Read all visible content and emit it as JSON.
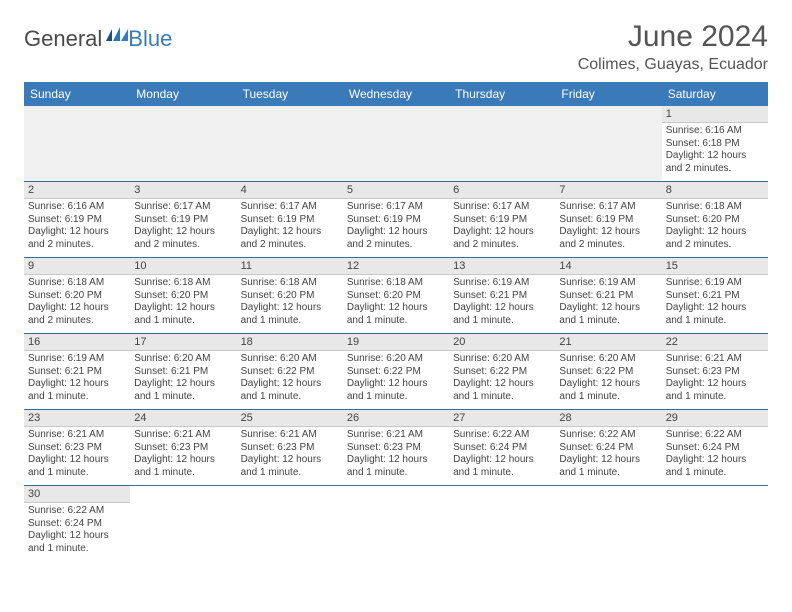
{
  "header": {
    "logo_main": "General",
    "logo_sub": "Blue",
    "month_title": "June 2024",
    "location": "Colimes, Guayas, Ecuador"
  },
  "colors": {
    "header_bg": "#3a7ab8",
    "header_text": "#ffffff",
    "day_bg": "#e8e8e8",
    "border": "#3a6a9a",
    "text": "#444444",
    "logo_blue": "#3a7ab8"
  },
  "day_headers": [
    "Sunday",
    "Monday",
    "Tuesday",
    "Wednesday",
    "Thursday",
    "Friday",
    "Saturday"
  ],
  "weeks": [
    [
      {
        "blank": true
      },
      {
        "blank": true
      },
      {
        "blank": true
      },
      {
        "blank": true
      },
      {
        "blank": true
      },
      {
        "blank": true
      },
      {
        "num": "1",
        "sunrise": "Sunrise: 6:16 AM",
        "sunset": "Sunset: 6:18 PM",
        "daylight": "Daylight: 12 hours and 2 minutes."
      }
    ],
    [
      {
        "num": "2",
        "sunrise": "Sunrise: 6:16 AM",
        "sunset": "Sunset: 6:19 PM",
        "daylight": "Daylight: 12 hours and 2 minutes."
      },
      {
        "num": "3",
        "sunrise": "Sunrise: 6:17 AM",
        "sunset": "Sunset: 6:19 PM",
        "daylight": "Daylight: 12 hours and 2 minutes."
      },
      {
        "num": "4",
        "sunrise": "Sunrise: 6:17 AM",
        "sunset": "Sunset: 6:19 PM",
        "daylight": "Daylight: 12 hours and 2 minutes."
      },
      {
        "num": "5",
        "sunrise": "Sunrise: 6:17 AM",
        "sunset": "Sunset: 6:19 PM",
        "daylight": "Daylight: 12 hours and 2 minutes."
      },
      {
        "num": "6",
        "sunrise": "Sunrise: 6:17 AM",
        "sunset": "Sunset: 6:19 PM",
        "daylight": "Daylight: 12 hours and 2 minutes."
      },
      {
        "num": "7",
        "sunrise": "Sunrise: 6:17 AM",
        "sunset": "Sunset: 6:19 PM",
        "daylight": "Daylight: 12 hours and 2 minutes."
      },
      {
        "num": "8",
        "sunrise": "Sunrise: 6:18 AM",
        "sunset": "Sunset: 6:20 PM",
        "daylight": "Daylight: 12 hours and 2 minutes."
      }
    ],
    [
      {
        "num": "9",
        "sunrise": "Sunrise: 6:18 AM",
        "sunset": "Sunset: 6:20 PM",
        "daylight": "Daylight: 12 hours and 2 minutes."
      },
      {
        "num": "10",
        "sunrise": "Sunrise: 6:18 AM",
        "sunset": "Sunset: 6:20 PM",
        "daylight": "Daylight: 12 hours and 1 minute."
      },
      {
        "num": "11",
        "sunrise": "Sunrise: 6:18 AM",
        "sunset": "Sunset: 6:20 PM",
        "daylight": "Daylight: 12 hours and 1 minute."
      },
      {
        "num": "12",
        "sunrise": "Sunrise: 6:18 AM",
        "sunset": "Sunset: 6:20 PM",
        "daylight": "Daylight: 12 hours and 1 minute."
      },
      {
        "num": "13",
        "sunrise": "Sunrise: 6:19 AM",
        "sunset": "Sunset: 6:21 PM",
        "daylight": "Daylight: 12 hours and 1 minute."
      },
      {
        "num": "14",
        "sunrise": "Sunrise: 6:19 AM",
        "sunset": "Sunset: 6:21 PM",
        "daylight": "Daylight: 12 hours and 1 minute."
      },
      {
        "num": "15",
        "sunrise": "Sunrise: 6:19 AM",
        "sunset": "Sunset: 6:21 PM",
        "daylight": "Daylight: 12 hours and 1 minute."
      }
    ],
    [
      {
        "num": "16",
        "sunrise": "Sunrise: 6:19 AM",
        "sunset": "Sunset: 6:21 PM",
        "daylight": "Daylight: 12 hours and 1 minute."
      },
      {
        "num": "17",
        "sunrise": "Sunrise: 6:20 AM",
        "sunset": "Sunset: 6:21 PM",
        "daylight": "Daylight: 12 hours and 1 minute."
      },
      {
        "num": "18",
        "sunrise": "Sunrise: 6:20 AM",
        "sunset": "Sunset: 6:22 PM",
        "daylight": "Daylight: 12 hours and 1 minute."
      },
      {
        "num": "19",
        "sunrise": "Sunrise: 6:20 AM",
        "sunset": "Sunset: 6:22 PM",
        "daylight": "Daylight: 12 hours and 1 minute."
      },
      {
        "num": "20",
        "sunrise": "Sunrise: 6:20 AM",
        "sunset": "Sunset: 6:22 PM",
        "daylight": "Daylight: 12 hours and 1 minute."
      },
      {
        "num": "21",
        "sunrise": "Sunrise: 6:20 AM",
        "sunset": "Sunset: 6:22 PM",
        "daylight": "Daylight: 12 hours and 1 minute."
      },
      {
        "num": "22",
        "sunrise": "Sunrise: 6:21 AM",
        "sunset": "Sunset: 6:23 PM",
        "daylight": "Daylight: 12 hours and 1 minute."
      }
    ],
    [
      {
        "num": "23",
        "sunrise": "Sunrise: 6:21 AM",
        "sunset": "Sunset: 6:23 PM",
        "daylight": "Daylight: 12 hours and 1 minute."
      },
      {
        "num": "24",
        "sunrise": "Sunrise: 6:21 AM",
        "sunset": "Sunset: 6:23 PM",
        "daylight": "Daylight: 12 hours and 1 minute."
      },
      {
        "num": "25",
        "sunrise": "Sunrise: 6:21 AM",
        "sunset": "Sunset: 6:23 PM",
        "daylight": "Daylight: 12 hours and 1 minute."
      },
      {
        "num": "26",
        "sunrise": "Sunrise: 6:21 AM",
        "sunset": "Sunset: 6:23 PM",
        "daylight": "Daylight: 12 hours and 1 minute."
      },
      {
        "num": "27",
        "sunrise": "Sunrise: 6:22 AM",
        "sunset": "Sunset: 6:24 PM",
        "daylight": "Daylight: 12 hours and 1 minute."
      },
      {
        "num": "28",
        "sunrise": "Sunrise: 6:22 AM",
        "sunset": "Sunset: 6:24 PM",
        "daylight": "Daylight: 12 hours and 1 minute."
      },
      {
        "num": "29",
        "sunrise": "Sunrise: 6:22 AM",
        "sunset": "Sunset: 6:24 PM",
        "daylight": "Daylight: 12 hours and 1 minute."
      }
    ],
    [
      {
        "num": "30",
        "sunrise": "Sunrise: 6:22 AM",
        "sunset": "Sunset: 6:24 PM",
        "daylight": "Daylight: 12 hours and 1 minute."
      },
      {
        "blank": true
      },
      {
        "blank": true
      },
      {
        "blank": true
      },
      {
        "blank": true
      },
      {
        "blank": true
      },
      {
        "blank": true
      }
    ]
  ]
}
